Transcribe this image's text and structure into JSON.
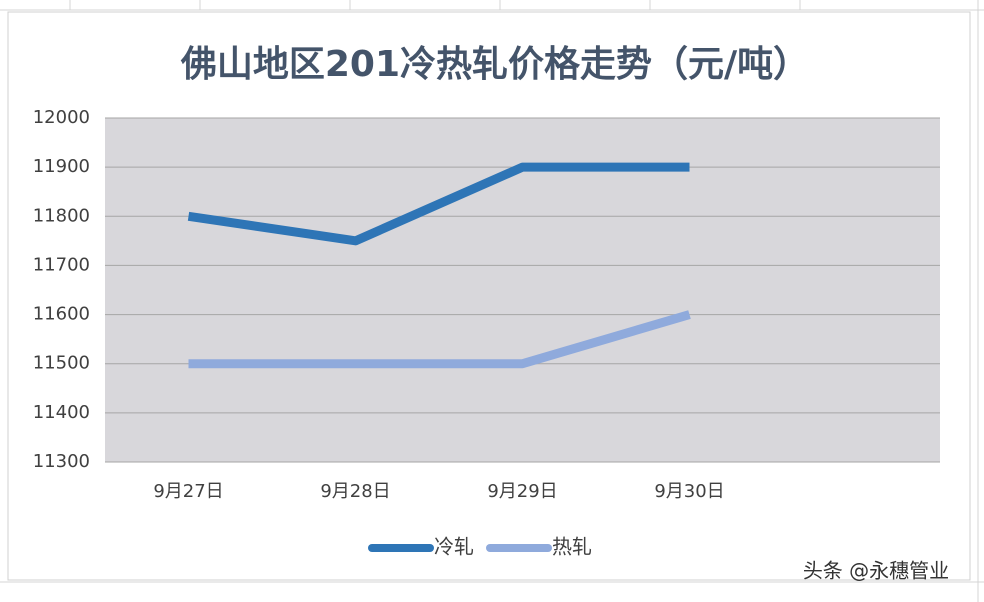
{
  "chart_data": {
    "type": "line",
    "title": "佛山地区201冷热轧价格走势（元/吨）",
    "categories": [
      "9月27日",
      "9月28日",
      "9月29日",
      "9月30日",
      null
    ],
    "series": [
      {
        "name": "冷轧",
        "color": "#2e75b6",
        "values": [
          11800,
          11750,
          11900,
          11900,
          null
        ]
      },
      {
        "name": "热轧",
        "color": "#8faadc",
        "values": [
          11500,
          11500,
          11500,
          11600,
          null
        ]
      }
    ],
    "ylim": [
      11300,
      12000
    ],
    "yticks": [
      11300,
      11400,
      11500,
      11600,
      11700,
      11800,
      11900,
      12000
    ],
    "grid": true,
    "legend": "bottom"
  },
  "watermark": "头条 @永穗管业"
}
